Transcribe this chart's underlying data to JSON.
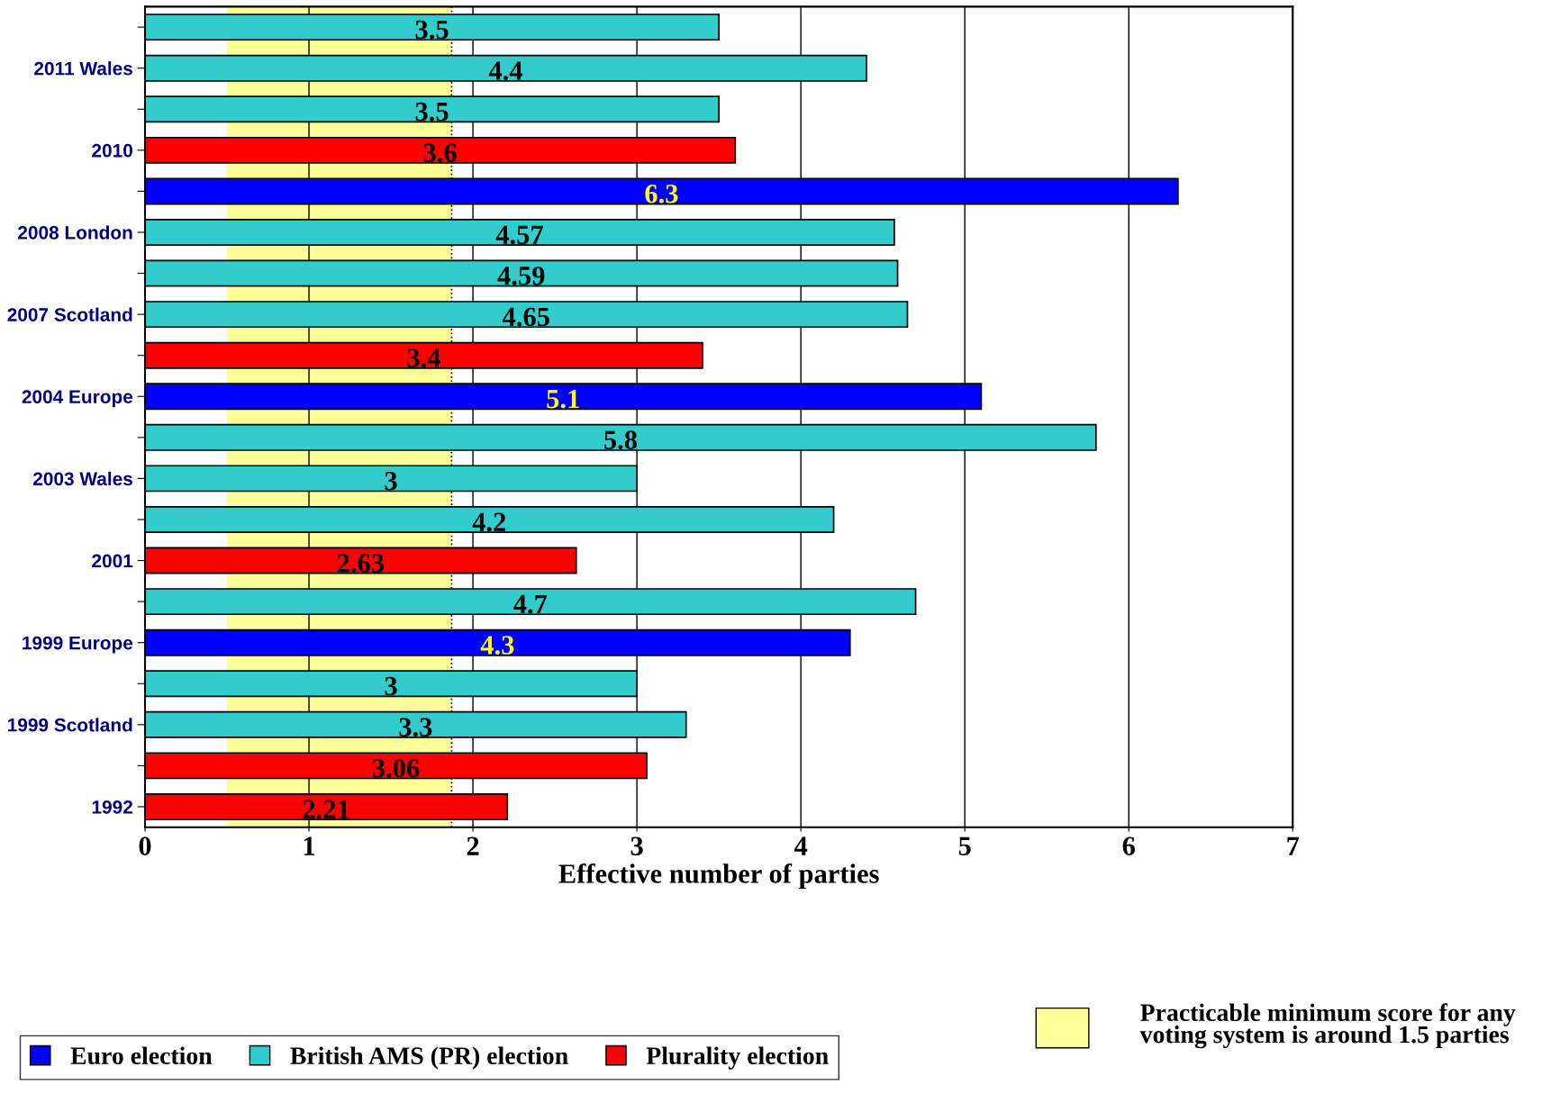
{
  "chart_data": {
    "type": "bar",
    "orientation": "horizontal",
    "xlabel": "Effective number of parties",
    "categories": [
      null,
      "2011 Wales",
      null,
      "2010",
      null,
      "2008 London",
      null,
      "2007 Scotland",
      null,
      "2004 Europe",
      null,
      "2003 Wales",
      null,
      "2001",
      null,
      "1999 Europe",
      null,
      "1999 Scotland",
      null,
      "1992"
    ],
    "series": [
      {
        "name": "Euro election",
        "color": "#0000ff",
        "values": [
          null,
          null,
          null,
          null,
          6.3,
          null,
          null,
          null,
          null,
          5.1,
          null,
          null,
          null,
          null,
          null,
          4.3,
          null,
          null,
          null,
          null
        ]
      },
      {
        "name": "British AMS (PR) election",
        "color": "#33cccc",
        "values": [
          3.5,
          4.4,
          3.5,
          null,
          null,
          4.57,
          4.59,
          4.65,
          null,
          null,
          5.8,
          3,
          4.2,
          null,
          4.7,
          null,
          3,
          3.3,
          null,
          null
        ]
      },
      {
        "name": "Plurality election",
        "color": "#ff0000",
        "values": [
          null,
          null,
          null,
          3.6,
          null,
          null,
          null,
          null,
          3.4,
          null,
          null,
          null,
          null,
          2.63,
          null,
          null,
          null,
          null,
          3.06,
          2.21
        ]
      }
    ],
    "ref_lines": [
      {
        "axis": "x",
        "value": 1.87,
        "line_style": "dotted",
        "color": "#000000"
      }
    ],
    "xlim": [
      0,
      7
    ],
    "xticks": [
      0,
      1,
      2,
      3,
      4,
      5,
      6,
      7
    ],
    "grid": "x",
    "legend": "bottom",
    "data_labels": true,
    "bands": [
      {
        "axis": "x",
        "from": 0.5,
        "to": 1.87,
        "color": "#ffff99",
        "label": "Practicable minimum score for any voting system is around 1.5 parties"
      }
    ]
  }
}
